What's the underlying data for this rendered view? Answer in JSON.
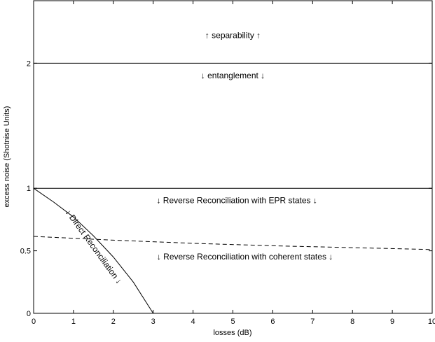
{
  "chart_data": {
    "type": "line",
    "title": "",
    "xlabel": "losses (dB)",
    "ylabel": "excess noise  (Shotnise Units)",
    "xlim": [
      0,
      10
    ],
    "ylim": [
      0,
      2.5
    ],
    "grid": false,
    "xticks": [
      "0",
      "1",
      "2",
      "3",
      "4",
      "5",
      "6",
      "7",
      "8",
      "9",
      "10"
    ],
    "yticks": [
      {
        "value": 0,
        "label": "0"
      },
      {
        "value": 0.5,
        "label": "0.5"
      },
      {
        "value": 1,
        "label": "1"
      },
      {
        "value": 2,
        "label": "2"
      }
    ],
    "series": [
      {
        "style": "solid",
        "x": [
          0,
          10
        ],
        "y": [
          2,
          2
        ]
      },
      {
        "style": "solid",
        "x": [
          0,
          10
        ],
        "y": [
          1,
          1
        ]
      },
      {
        "style": "solid",
        "x": [
          0,
          0.5,
          1,
          1.5,
          2,
          2.5,
          3
        ],
        "y": [
          1.0,
          0.89,
          0.77,
          0.62,
          0.45,
          0.25,
          0.0
        ]
      },
      {
        "style": "dashed",
        "x": [
          0,
          2,
          4,
          6,
          8,
          10
        ],
        "y": [
          0.615,
          0.585,
          0.56,
          0.54,
          0.525,
          0.51
        ]
      }
    ],
    "annotations": [
      {
        "text": "↑ separability ↑",
        "x": 5,
        "y": 2.2
      },
      {
        "text": "↓ entanglement ↓",
        "x": 5,
        "y": 1.88
      },
      {
        "text": "↓ Reverse Reconciliation with EPR states ↓",
        "x": 5.1,
        "y": 0.88
      },
      {
        "text": "↓ Reverse Reconciliation with coherent states ↓",
        "x": 5.3,
        "y": 0.43
      },
      {
        "text": "↓ Direct Reconciliation ↓",
        "x": 1.45,
        "y": 0.52,
        "rotate": 54
      }
    ]
  }
}
